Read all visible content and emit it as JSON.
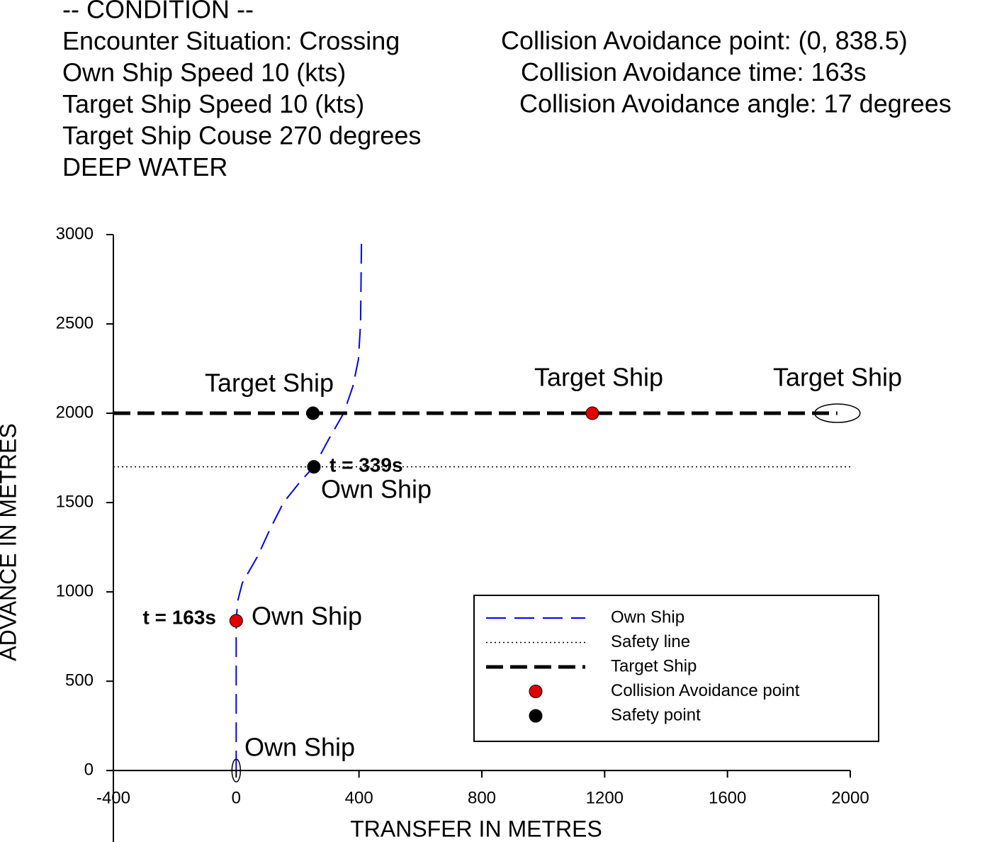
{
  "chart_data": {
    "type": "line",
    "condition_left": [
      "-- CONDITION --",
      "Encounter Situation: Crossing",
      "Own Ship Speed  10 (kts)",
      "Target Ship Speed  10 (kts)",
      "Target Ship Couse 270 degrees",
      "DEEP WATER"
    ],
    "condition_right": [
      "Collision Avoidance point:  (0, 838.5)",
      "Collision Avoidance time: 163s",
      "Collision Avoidance angle: 17 degrees"
    ],
    "x_label": "TRANSFER IN METRES",
    "y_label": "ADVANCE IN METRES",
    "xlim": [
      -400,
      2000
    ],
    "ylim": [
      -400,
      3000
    ],
    "xticks": [
      -400,
      0,
      400,
      800,
      1200,
      1600,
      2000
    ],
    "yticks": [
      0,
      500,
      1000,
      1500,
      2000,
      2500,
      3000
    ],
    "series": [
      {
        "name": "Own Ship",
        "color": "#0000ff",
        "style": "dashed",
        "x": [
          0,
          0,
          5,
          20,
          70,
          110,
          154,
          210,
          253,
          300,
          350,
          380,
          398,
          405,
          408
        ],
        "y": [
          0,
          838.5,
          950,
          1050,
          1200,
          1350,
          1500,
          1620,
          1700,
          1850,
          2000,
          2150,
          2300,
          2500,
          2950
        ]
      },
      {
        "name": "Safety line",
        "color": "#000000",
        "style": "dotted",
        "x": [
          -400,
          2000
        ],
        "y": [
          1700,
          1700
        ]
      },
      {
        "name": "Target Ship",
        "color": "#000000",
        "style": "thick-dashed",
        "x": [
          -400,
          1958
        ],
        "y": [
          2000,
          2000
        ]
      },
      {
        "name": "Collision Avoidance point",
        "color": "#e00000",
        "style": "marker",
        "x": [
          0,
          1160
        ],
        "y": [
          838.5,
          2000
        ]
      },
      {
        "name": "Safety point",
        "color": "#000000",
        "style": "marker",
        "x": [
          253,
          250
        ],
        "y": [
          1700,
          2000
        ]
      }
    ],
    "annotations": [
      "Target Ship",
      "Target Ship",
      "Target Ship",
      "t = 339s",
      "Own Ship",
      "t = 163s",
      "Own Ship",
      "Own Ship"
    ]
  }
}
